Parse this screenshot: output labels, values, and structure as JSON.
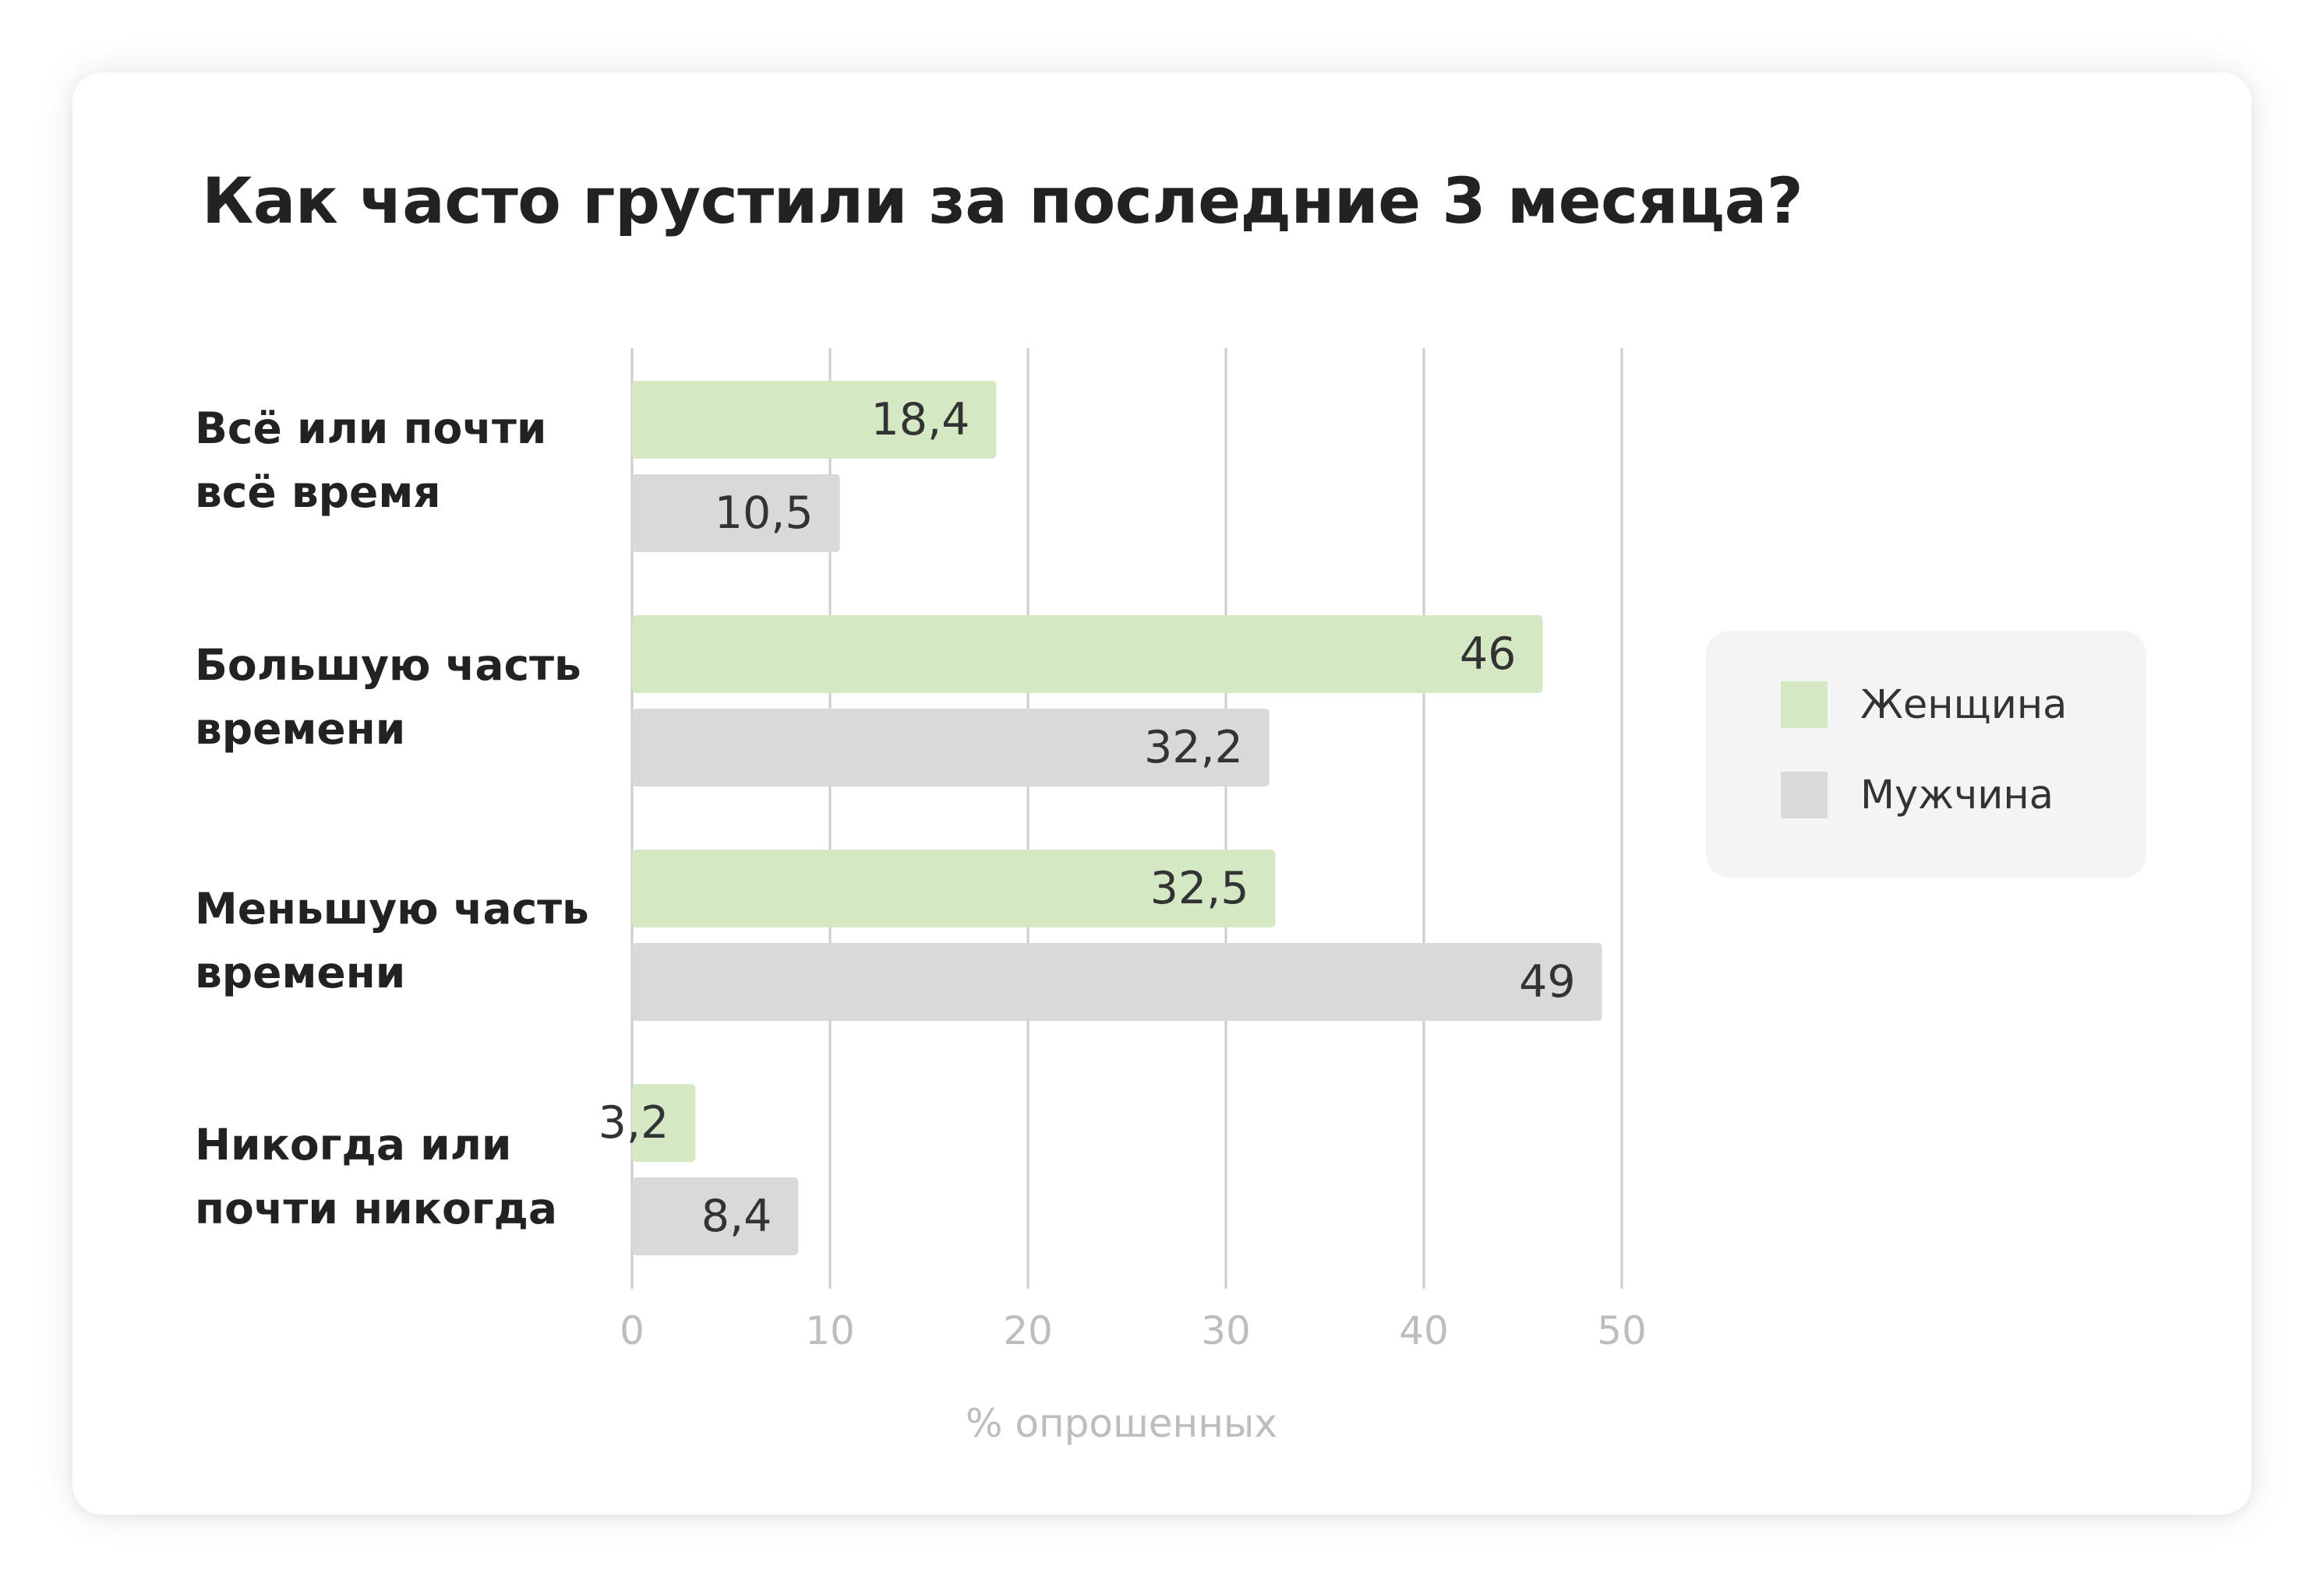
{
  "title": "Как часто грустили за последние 3 месяца?",
  "chart_data": {
    "type": "bar",
    "orientation": "horizontal",
    "title": "Как часто грустили за последние 3 месяца?",
    "categories": [
      [
        "Всё или почти",
        "всё время"
      ],
      [
        "Большую часть",
        "времени"
      ],
      [
        "Меньшую часть",
        "времени"
      ],
      [
        "Никогда или",
        "почти никогда"
      ]
    ],
    "series": [
      {
        "name": "Женщина",
        "color": "#d4e8c4",
        "values": [
          18.4,
          46,
          32.5,
          3.2
        ],
        "labels": [
          "18,4",
          "46",
          "32,5",
          "3,2"
        ]
      },
      {
        "name": "Мужчина",
        "color": "#d9d9d9",
        "values": [
          10.5,
          32.2,
          49,
          8.4
        ],
        "labels": [
          "10,5",
          "32,2",
          "49",
          "8,4"
        ]
      }
    ],
    "xlim": [
      0,
      50
    ],
    "xticks": [
      0,
      10,
      20,
      30,
      40,
      50
    ],
    "xticklabels": [
      "0",
      "10",
      "20",
      "30",
      "40",
      "50"
    ],
    "xlabel": "% опрошенных",
    "ylabel": "",
    "grid": "vertical",
    "legend_position": "right"
  }
}
